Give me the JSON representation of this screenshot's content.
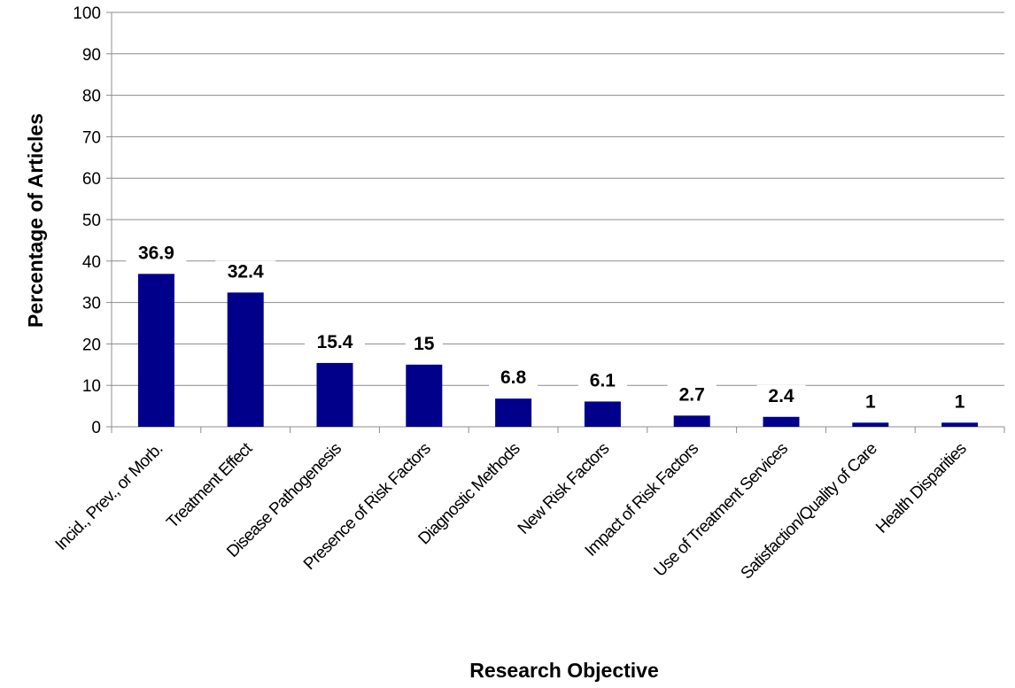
{
  "chart_data": {
    "type": "bar",
    "categories": [
      "Incid., Prev., or Morb.",
      "Treatment Effect",
      "Disease Pathogenesis",
      "Presence of Risk Factors",
      "Diagnostic Methods",
      "New Risk Factors",
      "Impact of Risk Factors",
      "Use of Treatment Services",
      "Satisfaction/Quality of Care",
      "Health Disparities"
    ],
    "values": [
      36.9,
      32.4,
      15.4,
      15,
      6.8,
      6.1,
      2.7,
      2.4,
      1,
      1
    ],
    "data_labels": [
      "36.9",
      "32.4",
      "15.4",
      "15",
      "6.8",
      "6.1",
      "2.7",
      "2.4",
      "1",
      "1"
    ],
    "title": "",
    "xlabel": "Research Objective",
    "ylabel": "Percentage of Articles",
    "ylim": [
      0,
      100
    ],
    "yticks": [
      "0",
      "10",
      "20",
      "30",
      "40",
      "50",
      "60",
      "70",
      "80",
      "90",
      "100"
    ],
    "grid": true,
    "bar_color": "#00008b"
  }
}
